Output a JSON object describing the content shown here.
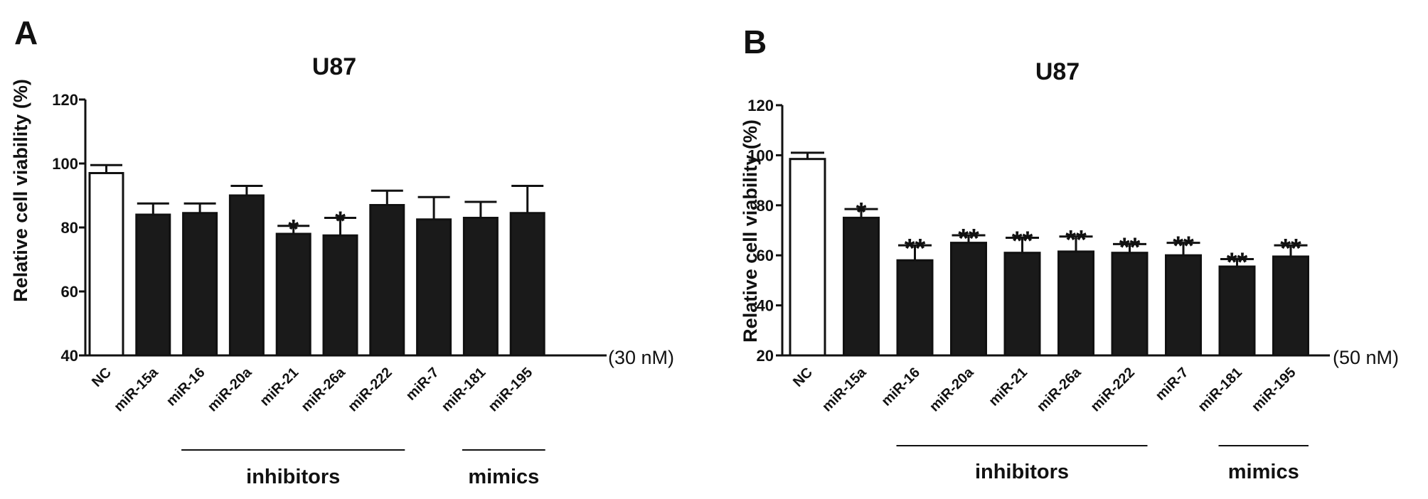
{
  "chart_data": [
    {
      "panel": "A",
      "type": "bar",
      "title": "U87",
      "ylabel": "Relative cell viability (%)",
      "ylim": [
        40,
        120
      ],
      "yticks": [
        "40",
        "60",
        "80",
        "100",
        "120"
      ],
      "concentration_label": "(30 nM)",
      "categories": [
        "NC",
        "miR-15a",
        "miR-16",
        "miR-20a",
        "miR-21",
        "miR-26a",
        "miR-222",
        "miR-7",
        "miR-181",
        "miR-195"
      ],
      "values": [
        97,
        84,
        84.5,
        90,
        78,
        77.5,
        87,
        82.5,
        83,
        84.5
      ],
      "errors": [
        2.5,
        3.5,
        3,
        3,
        2.5,
        5.5,
        4.5,
        7,
        5,
        8.5
      ],
      "significance": [
        "",
        "",
        "",
        "",
        "*",
        "*",
        "",
        "",
        "",
        ""
      ],
      "bar_colors": [
        "#ffffff",
        "#1a1a1a",
        "#1a1a1a",
        "#1a1a1a",
        "#1a1a1a",
        "#1a1a1a",
        "#1a1a1a",
        "#1a1a1a",
        "#1a1a1a",
        "#1a1a1a"
      ],
      "groups": [
        {
          "label": "inhibitors",
          "from": 2,
          "to": 6
        },
        {
          "label": "mimics",
          "from": 8,
          "to": 9
        }
      ]
    },
    {
      "panel": "B",
      "type": "bar",
      "title": "U87",
      "ylabel": "Relative cell viability (%)",
      "ylim": [
        20,
        120
      ],
      "yticks": [
        "20",
        "40",
        "60",
        "80",
        "100",
        "120"
      ],
      "concentration_label": "(50 nM)",
      "categories": [
        "NC",
        "miR-15a",
        "miR-16",
        "miR-20a",
        "miR-21",
        "miR-26a",
        "miR-222",
        "miR-7",
        "miR-181",
        "miR-195"
      ],
      "values": [
        98.5,
        75,
        58,
        65,
        61,
        61.5,
        61,
        60,
        55.5,
        59.5
      ],
      "errors": [
        2.5,
        3.5,
        6,
        3,
        6,
        6,
        3.5,
        5,
        3,
        4.5
      ],
      "significance": [
        "",
        "*",
        "**",
        "**",
        "**",
        "**",
        "**",
        "**",
        "**",
        "**"
      ],
      "bar_colors": [
        "#ffffff",
        "#1a1a1a",
        "#1a1a1a",
        "#1a1a1a",
        "#1a1a1a",
        "#1a1a1a",
        "#1a1a1a",
        "#1a1a1a",
        "#1a1a1a",
        "#1a1a1a"
      ],
      "groups": [
        {
          "label": "inhibitors",
          "from": 2,
          "to": 6
        },
        {
          "label": "mimics",
          "from": 8,
          "to": 9
        }
      ]
    }
  ]
}
